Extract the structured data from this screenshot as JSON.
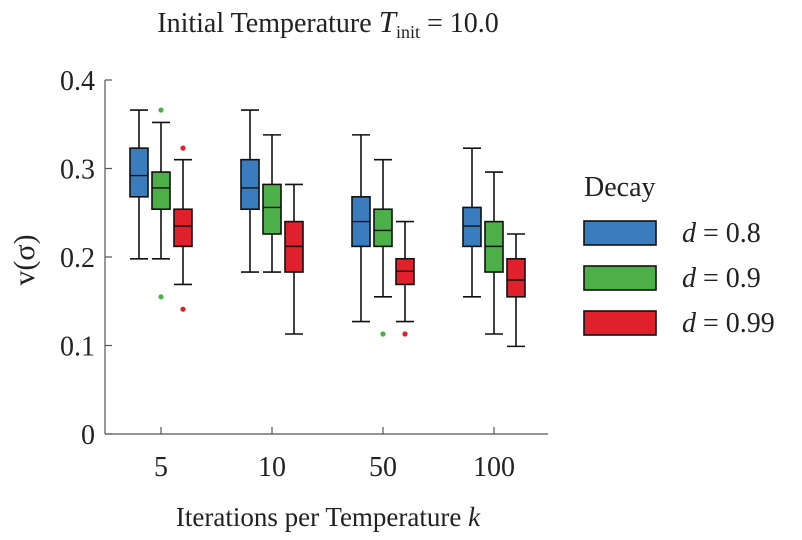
{
  "chart_data": {
    "type": "box",
    "title": {
      "prefix": "Initial Temperature ",
      "symbol": "T",
      "subscript": "init",
      "suffix": " = 10.0"
    },
    "xlabel": {
      "text": "Iterations per Temperature ",
      "symbol": "k"
    },
    "ylabel": {
      "text": "v(σ)"
    },
    "categories": [
      "5",
      "10",
      "50",
      "100"
    ],
    "ylim": [
      0,
      0.4
    ],
    "yticks": [
      "0",
      "0.1",
      "0.2",
      "0.3",
      "0.4"
    ],
    "grid": false,
    "legend": {
      "title": "Decay",
      "placement": "right"
    },
    "series": [
      {
        "name": "d = 0.8",
        "name_symbol": "d",
        "name_value": " = 0.8",
        "color": "#3a7dbf",
        "boxes": [
          {
            "whisker_low": 0.198,
            "q1": 0.268,
            "median": 0.292,
            "q3": 0.323,
            "whisker_high": 0.366,
            "outliers": []
          },
          {
            "whisker_low": 0.183,
            "q1": 0.254,
            "median": 0.278,
            "q3": 0.31,
            "whisker_high": 0.366,
            "outliers": []
          },
          {
            "whisker_low": 0.127,
            "q1": 0.212,
            "median": 0.24,
            "q3": 0.268,
            "whisker_high": 0.338,
            "outliers": []
          },
          {
            "whisker_low": 0.155,
            "q1": 0.212,
            "median": 0.235,
            "q3": 0.256,
            "whisker_high": 0.323,
            "outliers": []
          }
        ]
      },
      {
        "name": "d = 0.9",
        "name_symbol": "d",
        "name_value": " = 0.9",
        "color": "#4caf47",
        "boxes": [
          {
            "whisker_low": 0.198,
            "q1": 0.254,
            "median": 0.278,
            "q3": 0.296,
            "whisker_high": 0.352,
            "outliers": [
              0.366,
              0.155
            ]
          },
          {
            "whisker_low": 0.183,
            "q1": 0.226,
            "median": 0.256,
            "q3": 0.282,
            "whisker_high": 0.338,
            "outliers": []
          },
          {
            "whisker_low": 0.155,
            "q1": 0.212,
            "median": 0.23,
            "q3": 0.254,
            "whisker_high": 0.31,
            "outliers": [
              0.113
            ]
          },
          {
            "whisker_low": 0.113,
            "q1": 0.183,
            "median": 0.212,
            "q3": 0.24,
            "whisker_high": 0.296,
            "outliers": []
          }
        ]
      },
      {
        "name": "d = 0.99",
        "name_symbol": "d",
        "name_value": " = 0.99",
        "color": "#e0202a",
        "boxes": [
          {
            "whisker_low": 0.169,
            "q1": 0.212,
            "median": 0.235,
            "q3": 0.254,
            "whisker_high": 0.31,
            "outliers": [
              0.323,
              0.141
            ]
          },
          {
            "whisker_low": 0.113,
            "q1": 0.183,
            "median": 0.212,
            "q3": 0.24,
            "whisker_high": 0.282,
            "outliers": []
          },
          {
            "whisker_low": 0.127,
            "q1": 0.169,
            "median": 0.184,
            "q3": 0.198,
            "whisker_high": 0.24,
            "outliers": [
              0.113
            ]
          },
          {
            "whisker_low": 0.099,
            "q1": 0.155,
            "median": 0.174,
            "q3": 0.198,
            "whisker_high": 0.226,
            "outliers": []
          }
        ]
      }
    ]
  }
}
